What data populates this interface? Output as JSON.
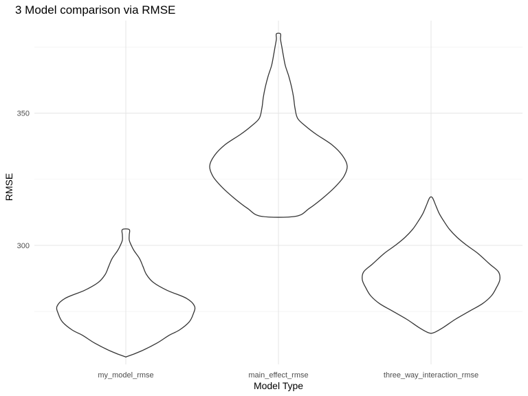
{
  "chart_data": {
    "type": "violin",
    "title": "3 Model comparison via RMSE",
    "xlabel": "Model Type",
    "ylabel": "RMSE",
    "categories": [
      "my_model_rmse",
      "main_effect_rmse",
      "three_way_interaction_rmse"
    ],
    "y_ticks": [
      300,
      350
    ],
    "ylim": [
      255,
      385
    ],
    "grid": true,
    "violins": [
      {
        "category": "my_model_rmse",
        "min": 258,
        "max": 306,
        "profile": [
          [
            258,
            0.02
          ],
          [
            260,
            0.22
          ],
          [
            263,
            0.45
          ],
          [
            266,
            0.63
          ],
          [
            268,
            0.78
          ],
          [
            271,
            0.92
          ],
          [
            274,
            0.98
          ],
          [
            277,
            1.0
          ],
          [
            280,
            0.88
          ],
          [
            283,
            0.6
          ],
          [
            286,
            0.4
          ],
          [
            289,
            0.3
          ],
          [
            292,
            0.25
          ],
          [
            295,
            0.2
          ],
          [
            298,
            0.12
          ],
          [
            300,
            0.08
          ],
          [
            302,
            0.05
          ],
          [
            304,
            0.05
          ],
          [
            306,
            0.05
          ]
        ]
      },
      {
        "category": "main_effect_rmse",
        "min": 311,
        "max": 380,
        "profile": [
          [
            311,
            0.25
          ],
          [
            314,
            0.45
          ],
          [
            318,
            0.65
          ],
          [
            322,
            0.82
          ],
          [
            326,
            0.95
          ],
          [
            330,
            1.0
          ],
          [
            334,
            0.93
          ],
          [
            338,
            0.78
          ],
          [
            342,
            0.55
          ],
          [
            345,
            0.4
          ],
          [
            348,
            0.28
          ],
          [
            352,
            0.24
          ],
          [
            356,
            0.22
          ],
          [
            360,
            0.19
          ],
          [
            364,
            0.15
          ],
          [
            368,
            0.1
          ],
          [
            372,
            0.07
          ],
          [
            375,
            0.05
          ],
          [
            378,
            0.03
          ],
          [
            380,
            0.03
          ]
        ]
      },
      {
        "category": "three_way_interaction_rmse",
        "min": 267,
        "max": 318,
        "profile": [
          [
            267,
            0.04
          ],
          [
            269,
            0.18
          ],
          [
            272,
            0.35
          ],
          [
            275,
            0.55
          ],
          [
            278,
            0.75
          ],
          [
            281,
            0.88
          ],
          [
            284,
            0.95
          ],
          [
            287,
            1.0
          ],
          [
            290,
            0.98
          ],
          [
            293,
            0.85
          ],
          [
            297,
            0.68
          ],
          [
            300,
            0.52
          ],
          [
            303,
            0.38
          ],
          [
            306,
            0.27
          ],
          [
            309,
            0.19
          ],
          [
            312,
            0.12
          ],
          [
            315,
            0.07
          ],
          [
            318,
            0.02
          ]
        ]
      }
    ]
  }
}
